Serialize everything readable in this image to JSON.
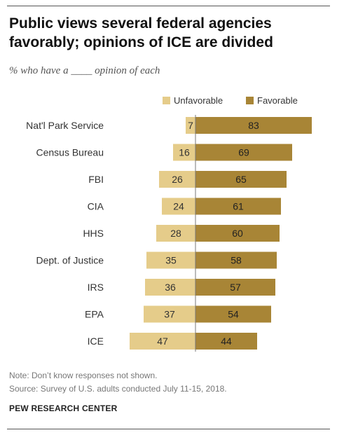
{
  "title": "Public views several federal agencies favorably; opinions of ICE are divided",
  "subtitle": "% who have a ____ opinion of each",
  "note": "Note: Don’t know responses not shown.",
  "source": "Source: Survey of U.S. adults conducted July 11-15, 2018.",
  "credit": "PEW RESEARCH CENTER",
  "colors": {
    "unfavorable": "#e5cc8a",
    "favorable": "#a88536",
    "label_text": "#333333",
    "divider": "#777777"
  },
  "chart_data": {
    "type": "bar",
    "orientation": "horizontal-diverging",
    "categories": [
      "Nat'l Park Service",
      "Census Bureau",
      "FBI",
      "CIA",
      "HHS",
      "Dept. of Justice",
      "IRS",
      "EPA",
      "ICE"
    ],
    "series": [
      {
        "name": "Unfavorable",
        "values": [
          7,
          16,
          26,
          24,
          28,
          35,
          36,
          37,
          47
        ]
      },
      {
        "name": "Favorable",
        "values": [
          83,
          69,
          65,
          61,
          60,
          58,
          57,
          54,
          44
        ]
      }
    ],
    "legend_position": "top-right",
    "grid": false
  }
}
